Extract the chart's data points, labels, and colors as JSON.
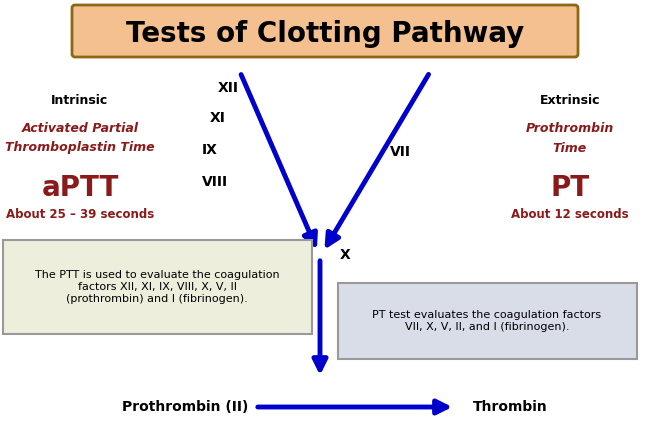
{
  "title": "Tests of Clotting Pathway",
  "title_fontsize": 20,
  "title_bg": "#F5C090",
  "title_border": "#8B6914",
  "bg_color": "#FFFFFF",
  "intrinsic_label": "Intrinsic",
  "extrinsic_label": "Extrinsic",
  "aptt_label1": "Activated Partial",
  "aptt_label2": "Thromboplastin Time",
  "aptt_abbr": "aPTT",
  "aptt_time": "About 25 – 39 seconds",
  "pt_label1": "Prothrombin",
  "pt_label2": "Time",
  "pt_abbr": "PT",
  "pt_time": "About 12 seconds",
  "ptt_box_text": "The PTT is used to evaluate the coagulation\nfactors XII, XI, IX, VIII, X, V, II\n(prothrombin) and I (fibrinogen).",
  "pt_box_text": "PT test evaluates the coagulation factors\nVII, X, V, II, and I (fibrinogen).",
  "prothrombin_label": "Prothrombin (II)",
  "thrombin_label": "Thrombin",
  "arrow_color": "#0000CC",
  "dark_red": "#8B1A1A",
  "black": "#000000",
  "gray_border": "#999999"
}
